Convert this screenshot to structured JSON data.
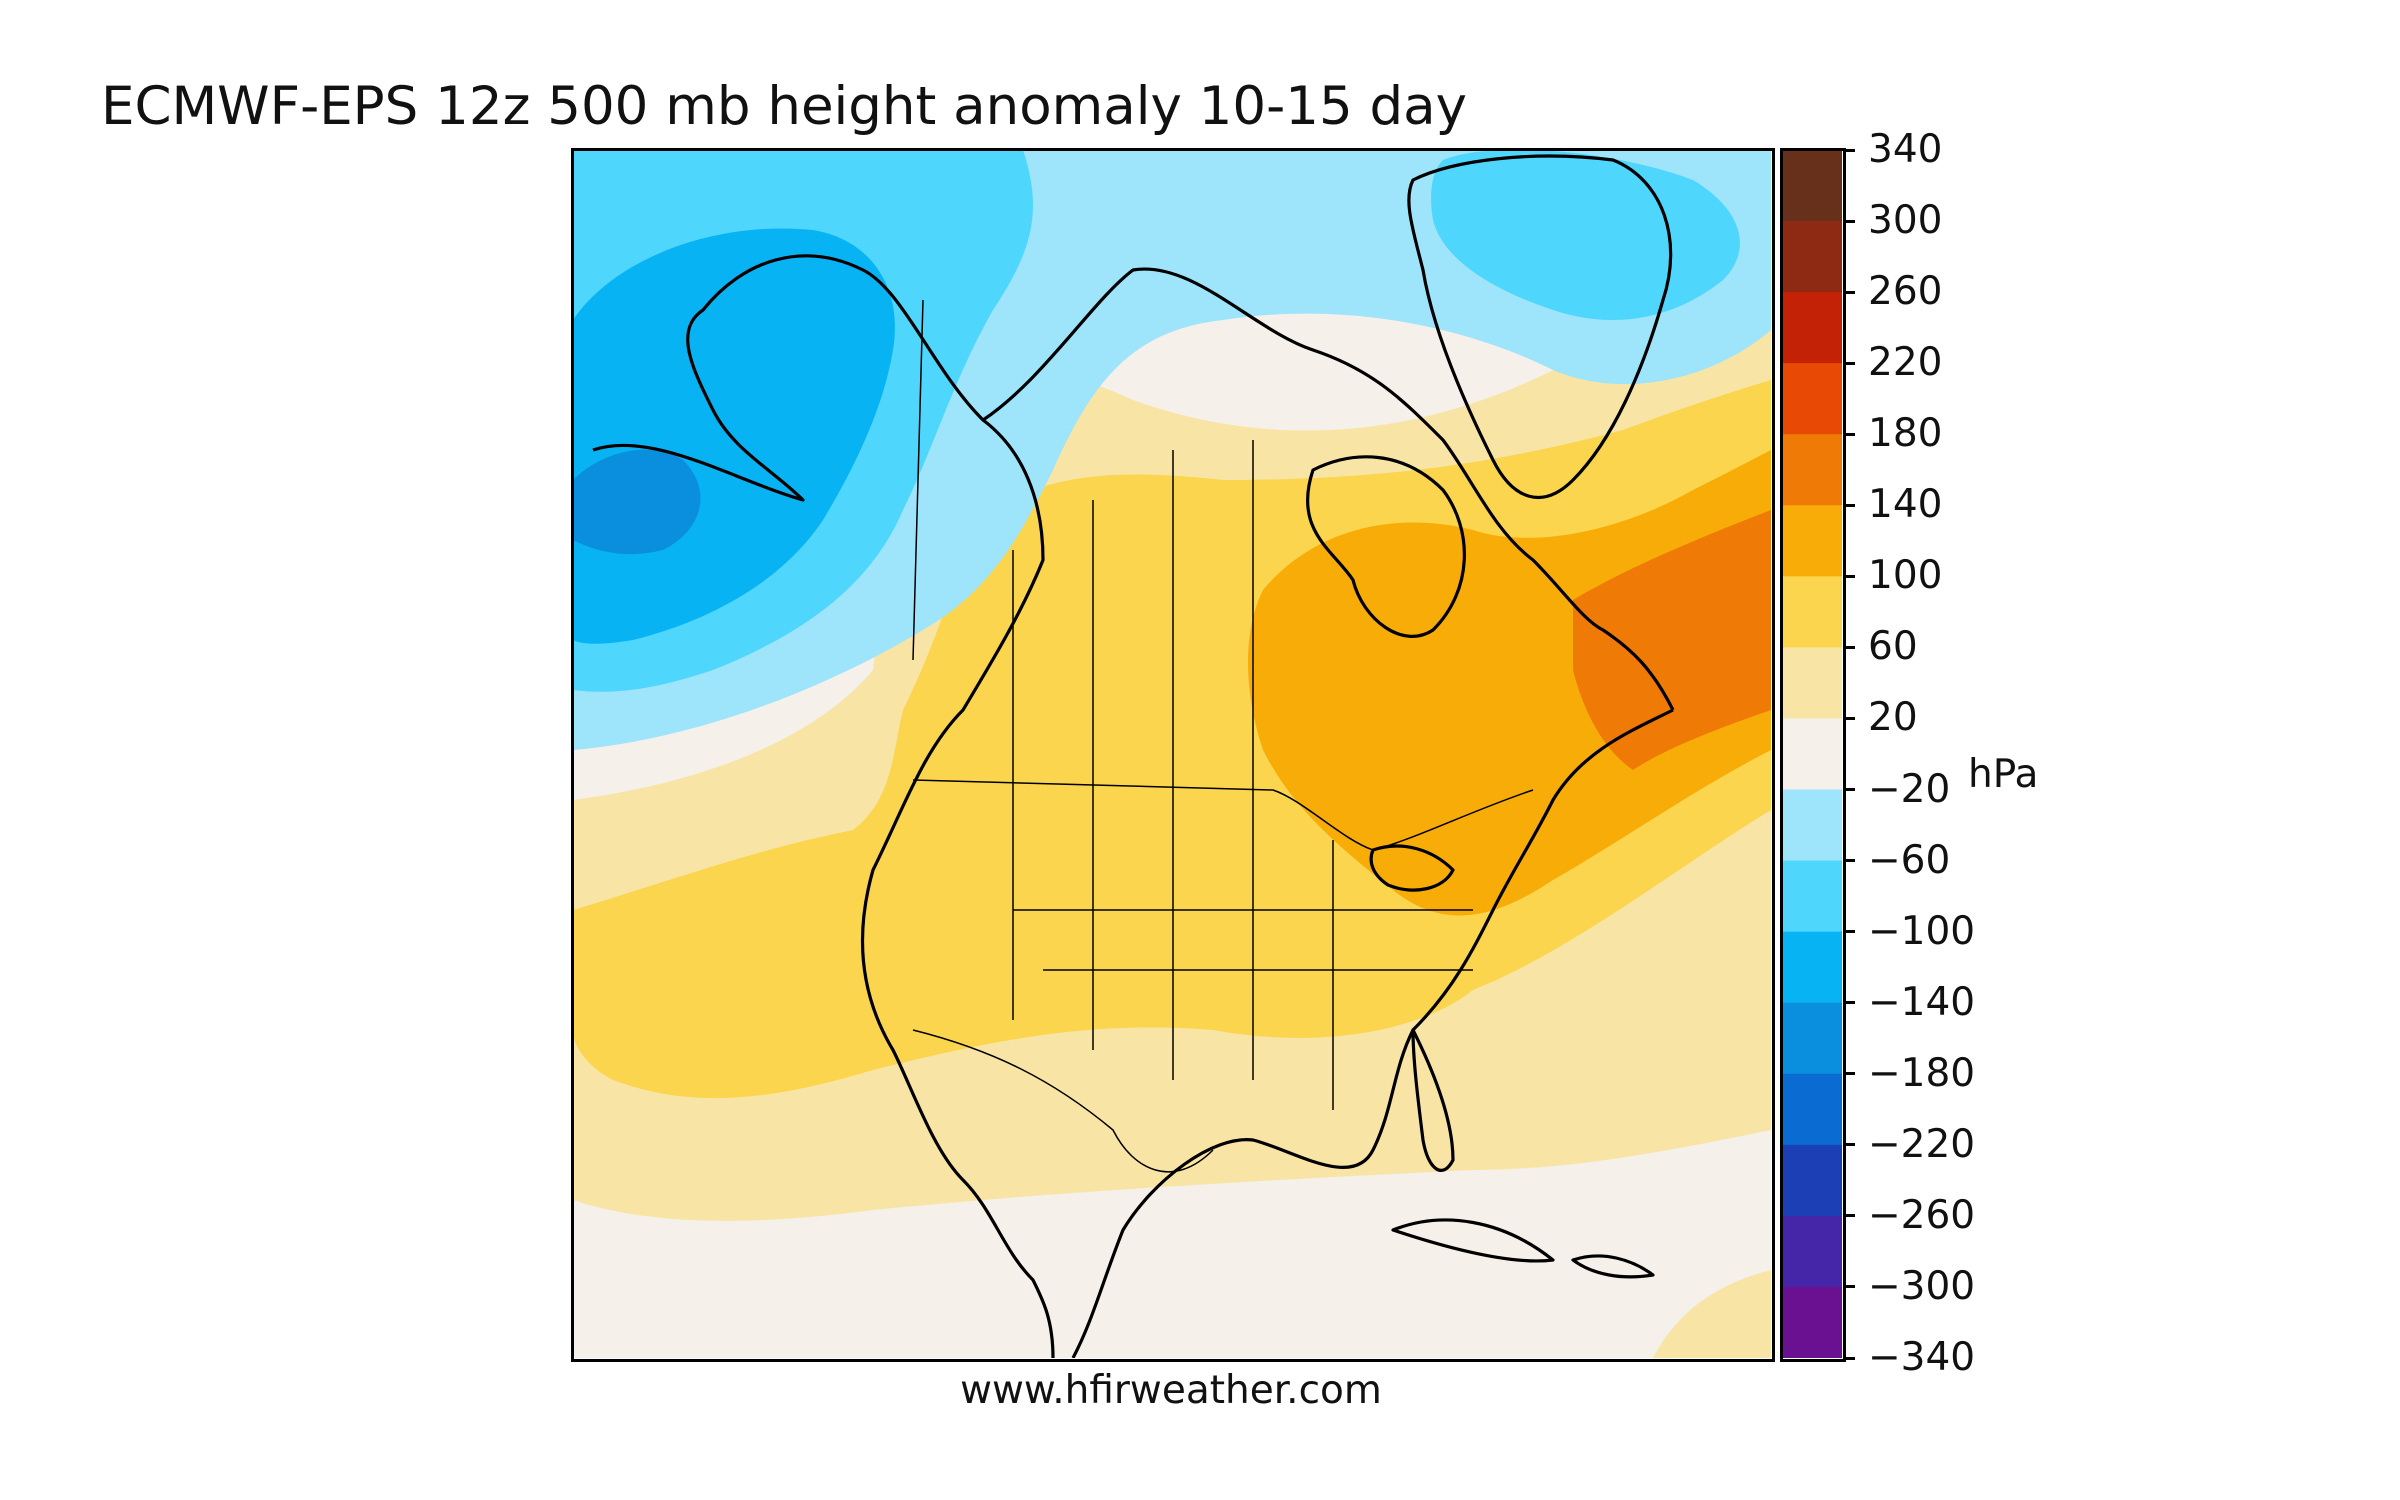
{
  "title": "ECMWF-EPS 12z 500 mb height anomaly 10-15 day",
  "footer": "www.hfirweather.com",
  "colorbar": {
    "unit": "hPa",
    "tick_labels": [
      "340",
      "300",
      "260",
      "220",
      "180",
      "140",
      "100",
      "60",
      "20",
      "−20",
      "−60",
      "−100",
      "−140",
      "−180",
      "−220",
      "−260",
      "−300",
      "−340"
    ],
    "bands_top_to_bottom": [
      {
        "range": "300 to 340",
        "color": "#67301a"
      },
      {
        "range": "260 to 300",
        "color": "#8e2a13"
      },
      {
        "range": "220 to 260",
        "color": "#c42206"
      },
      {
        "range": "180 to 220",
        "color": "#e84a06"
      },
      {
        "range": "140 to 180",
        "color": "#f07a06"
      },
      {
        "range": "100 to 140",
        "color": "#f7ac08"
      },
      {
        "range": "60 to 100",
        "color": "#fad54d"
      },
      {
        "range": "20 to 60",
        "color": "#f8e5a6"
      },
      {
        "range": "-20 to 20",
        "color": "#f5f0ea"
      },
      {
        "range": "-60 to -20",
        "color": "#9ee4fb"
      },
      {
        "range": "-100 to -60",
        "color": "#4fd6fd"
      },
      {
        "range": "-140 to -100",
        "color": "#08b3f3"
      },
      {
        "range": "-180 to -140",
        "color": "#0a8fdf"
      },
      {
        "range": "-220 to -180",
        "color": "#0a6cd3"
      },
      {
        "range": "-260 to -220",
        "color": "#1c3fb6"
      },
      {
        "range": "-300 to -260",
        "color": "#4626a8"
      },
      {
        "range": "-340 to -300",
        "color": "#6a1192"
      }
    ]
  },
  "map": {
    "region": "North America",
    "field": "500 mb height anomaly",
    "features": [
      {
        "name": "negative anomaly over Alaska and Gulf of Alaska",
        "level": "-140 to -180",
        "color": "#0a8fdf"
      },
      {
        "name": "positive anomaly over Quebec and Newfoundland",
        "level": "140 to 180",
        "color": "#f07a06"
      },
      {
        "name": "weak negative anomaly over central Greenland",
        "level": "-60 to -100",
        "color": "#4fd6fd"
      }
    ]
  }
}
